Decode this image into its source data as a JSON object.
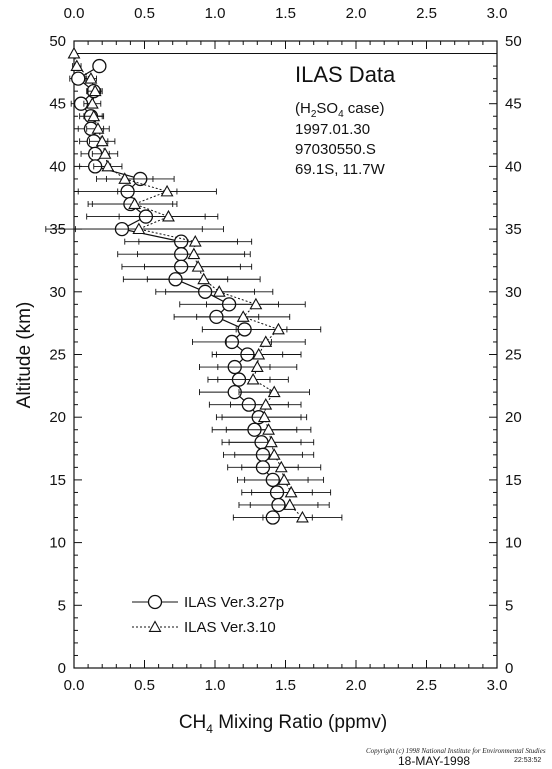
{
  "chart_data": {
    "type": "scatter",
    "title": "ILAS Data",
    "annotations": [
      "(H₂SO₄ case)",
      "1997.01.30",
      "97030550.S",
      "69.1S, 11.7W"
    ],
    "xlabel": "CH₄ Mixing Ratio (ppmv)",
    "ylabel": "Altitude (km)",
    "xlim": [
      0.0,
      3.0
    ],
    "ylim": [
      0,
      50
    ],
    "x_ticks_bottom": [
      "0.0",
      "0.5",
      "1.0",
      "1.5",
      "2.0",
      "2.5",
      "3.0"
    ],
    "x_ticks_top": [
      "0.0",
      "0.5",
      "1.0",
      "1.5",
      "2.0",
      "2.5",
      "3.0"
    ],
    "y_ticks": [
      "0",
      "5",
      "10",
      "15",
      "20",
      "25",
      "30",
      "35",
      "40",
      "45",
      "50"
    ],
    "grid": false,
    "legend_position": "lower-left",
    "horizontal_reference_line_km": 49.0,
    "series": [
      {
        "name": "ILAS Ver.3.27p",
        "marker": "circle",
        "line": "solid",
        "points": [
          {
            "y": 48,
            "x": 0.18,
            "err": 0.03
          },
          {
            "y": 47,
            "x": 0.03,
            "err": 0.06
          },
          {
            "y": 46,
            "x": 0.14,
            "err": 0.05
          },
          {
            "y": 45,
            "x": 0.05,
            "err": 0.07
          },
          {
            "y": 44,
            "x": 0.12,
            "err": 0.08
          },
          {
            "y": 43,
            "x": 0.12,
            "err": 0.09
          },
          {
            "y": 42,
            "x": 0.14,
            "err": 0.1
          },
          {
            "y": 41,
            "x": 0.15,
            "err": 0.1
          },
          {
            "y": 40,
            "x": 0.15,
            "err": 0.11
          },
          {
            "y": 39,
            "x": 0.47,
            "err": 0.24
          },
          {
            "y": 38,
            "x": 0.38,
            "err": 0.35
          },
          {
            "y": 37,
            "x": 0.4,
            "err": 0.3
          },
          {
            "y": 36,
            "x": 0.51,
            "err": 0.42
          },
          {
            "y": 35,
            "x": 0.34,
            "err": 0.72
          },
          {
            "y": 34,
            "x": 0.76,
            "err": 0.4
          },
          {
            "y": 33,
            "x": 0.76,
            "err": 0.45
          },
          {
            "y": 32,
            "x": 0.76,
            "err": 0.42
          },
          {
            "y": 31,
            "x": 0.72,
            "err": 0.37
          },
          {
            "y": 30,
            "x": 0.93,
            "err": 0.35
          },
          {
            "y": 29,
            "x": 1.1,
            "err": 0.35
          },
          {
            "y": 28,
            "x": 1.01,
            "err": 0.3
          },
          {
            "y": 27,
            "x": 1.21,
            "err": 0.3
          },
          {
            "y": 26,
            "x": 1.12,
            "err": 0.28
          },
          {
            "y": 25,
            "x": 1.23,
            "err": 0.25
          },
          {
            "y": 24,
            "x": 1.14,
            "err": 0.25
          },
          {
            "y": 23,
            "x": 1.17,
            "err": 0.22
          },
          {
            "y": 22,
            "x": 1.14,
            "err": 0.25
          },
          {
            "y": 21,
            "x": 1.24,
            "err": 0.28
          },
          {
            "y": 20,
            "x": 1.31,
            "err": 0.3
          },
          {
            "y": 19,
            "x": 1.28,
            "err": 0.3
          },
          {
            "y": 18,
            "x": 1.33,
            "err": 0.28
          },
          {
            "y": 17,
            "x": 1.34,
            "err": 0.28
          },
          {
            "y": 16,
            "x": 1.34,
            "err": 0.25
          },
          {
            "y": 15,
            "x": 1.41,
            "err": 0.25
          },
          {
            "y": 14,
            "x": 1.44,
            "err": 0.25
          },
          {
            "y": 13,
            "x": 1.45,
            "err": 0.28
          },
          {
            "y": 12,
            "x": 1.41,
            "err": 0.28
          }
        ]
      },
      {
        "name": "ILAS Ver.3.10",
        "marker": "triangle",
        "line": "dotted",
        "points": [
          {
            "y": 49,
            "x": 0.0,
            "err": 0.0
          },
          {
            "y": 48,
            "x": 0.02,
            "err": 0.03
          },
          {
            "y": 47,
            "x": 0.12,
            "err": 0.04
          },
          {
            "y": 46,
            "x": 0.15,
            "err": 0.05
          },
          {
            "y": 45,
            "x": 0.13,
            "err": 0.06
          },
          {
            "y": 44,
            "x": 0.14,
            "err": 0.07
          },
          {
            "y": 43,
            "x": 0.17,
            "err": 0.08
          },
          {
            "y": 42,
            "x": 0.2,
            "err": 0.09
          },
          {
            "y": 41,
            "x": 0.22,
            "err": 0.09
          },
          {
            "y": 40,
            "x": 0.24,
            "err": 0.1
          },
          {
            "y": 39,
            "x": 0.36,
            "err": 0.2
          },
          {
            "y": 38,
            "x": 0.66,
            "err": 0.35
          },
          {
            "y": 37,
            "x": 0.43,
            "err": 0.3
          },
          {
            "y": 36,
            "x": 0.67,
            "err": 0.35
          },
          {
            "y": 35,
            "x": 0.46,
            "err": 0.45
          },
          {
            "y": 34,
            "x": 0.86,
            "err": 0.4
          },
          {
            "y": 33,
            "x": 0.85,
            "err": 0.4
          },
          {
            "y": 32,
            "x": 0.88,
            "err": 0.38
          },
          {
            "y": 31,
            "x": 0.92,
            "err": 0.4
          },
          {
            "y": 30,
            "x": 1.03,
            "err": 0.38
          },
          {
            "y": 29,
            "x": 1.29,
            "err": 0.35
          },
          {
            "y": 28,
            "x": 1.2,
            "err": 0.33
          },
          {
            "y": 27,
            "x": 1.45,
            "err": 0.3
          },
          {
            "y": 26,
            "x": 1.36,
            "err": 0.28
          },
          {
            "y": 25,
            "x": 1.31,
            "err": 0.3
          },
          {
            "y": 24,
            "x": 1.3,
            "err": 0.28
          },
          {
            "y": 23,
            "x": 1.27,
            "err": 0.25
          },
          {
            "y": 22,
            "x": 1.42,
            "err": 0.25
          },
          {
            "y": 21,
            "x": 1.36,
            "err": 0.25
          },
          {
            "y": 20,
            "x": 1.35,
            "err": 0.3
          },
          {
            "y": 19,
            "x": 1.38,
            "err": 0.3
          },
          {
            "y": 18,
            "x": 1.4,
            "err": 0.3
          },
          {
            "y": 17,
            "x": 1.42,
            "err": 0.28
          },
          {
            "y": 16,
            "x": 1.47,
            "err": 0.28
          },
          {
            "y": 15,
            "x": 1.49,
            "err": 0.28
          },
          {
            "y": 14,
            "x": 1.54,
            "err": 0.28
          },
          {
            "y": 13,
            "x": 1.53,
            "err": 0.28
          },
          {
            "y": 12,
            "x": 1.62,
            "err": 0.28
          }
        ]
      }
    ]
  },
  "footer": {
    "copyright": "Copyright (c) 1998 National Institute for Environmental Studies",
    "date": "18-MAY-1998",
    "time": "22:53:52"
  }
}
